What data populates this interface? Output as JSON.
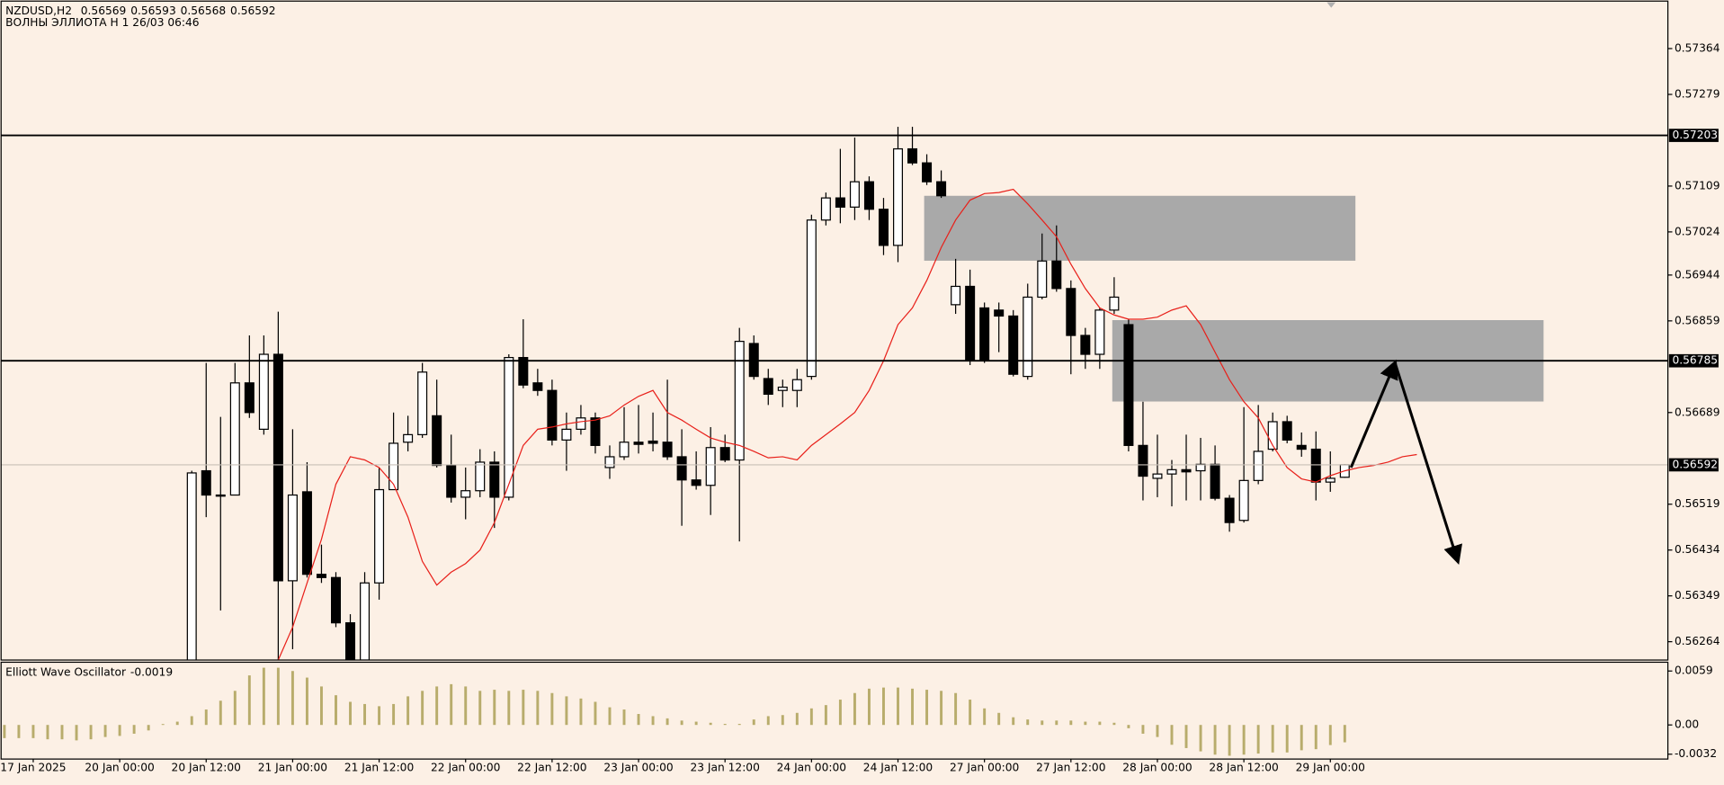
{
  "chart_data": {
    "type": "candlestick",
    "title": "NZDUSD,H2",
    "subtitle": "ВОЛНЫ ЭЛЛИОТА H 1 26/03 06:46",
    "categories": [
      null,
      null,
      "17 Jan 2025",
      null,
      null,
      null,
      null,
      null,
      "20 Jan 00:00",
      null,
      null,
      null,
      null,
      null,
      "20 Jan 12:00",
      null,
      null,
      null,
      null,
      null,
      "21 Jan 00:00",
      null,
      null,
      null,
      null,
      null,
      "21 Jan 12:00",
      null,
      null,
      null,
      null,
      null,
      "22 Jan 00:00",
      null,
      null,
      null,
      null,
      null,
      "22 Jan 12:00",
      null,
      null,
      null,
      null,
      null,
      "23 Jan 00:00",
      null,
      null,
      null,
      null,
      null,
      "23 Jan 12:00",
      null,
      null,
      null,
      null,
      null,
      "24 Jan 00:00",
      null,
      null,
      null,
      null,
      null,
      "24 Jan 12:00",
      null,
      null,
      null,
      null,
      null,
      "27 Jan 00:00",
      null,
      null,
      null,
      null,
      null,
      "27 Jan 12:00",
      null,
      null,
      null,
      null,
      null,
      "28 Jan 00:00",
      null,
      null,
      null,
      null,
      null,
      "28 Jan 12:00",
      null,
      null,
      null,
      null,
      null,
      "29 Jan 00:00",
      null,
      null,
      null,
      null,
      null,
      null
    ],
    "open": [
      null,
      null,
      null,
      null,
      null,
      null,
      null,
      null,
      null,
      null,
      null,
      null,
      null,
      0.56148,
      0.56581,
      0.56536,
      0.56536,
      0.56744,
      0.56658,
      0.56797,
      0.56377,
      0.56542,
      0.56389,
      0.56383,
      0.56299,
      0.5623,
      0.56373,
      0.56546,
      0.56634,
      0.56648,
      0.56683,
      0.56591,
      0.56532,
      0.56544,
      0.56597,
      0.56532,
      0.56791,
      0.56744,
      0.5673,
      0.56638,
      0.56658,
      0.56679,
      0.56587,
      0.56607,
      0.56634,
      0.56636,
      0.56634,
      0.56607,
      0.56564,
      0.56554,
      0.56624,
      0.56601,
      0.56817,
      0.56752,
      0.5673,
      0.5673,
      0.56756,
      0.57046,
      0.57087,
      0.5707,
      0.57117,
      0.57066,
      0.56999,
      0.57178,
      0.57152,
      0.57117,
      0.56889,
      0.56923,
      0.56883,
      0.56879,
      0.56868,
      0.56756,
      0.56903,
      0.5697,
      0.56919,
      0.56832,
      0.56797,
      0.56879,
      0.56852,
      0.56628,
      0.56567,
      0.56575,
      0.56583,
      0.56581,
      0.56593,
      0.5653,
      0.56489,
      0.56563,
      0.56621,
      0.56672,
      0.56628,
      0.56621,
      0.5656,
      0.56569,
      null,
      null,
      null,
      null,
      null
    ],
    "high": [
      null,
      null,
      null,
      null,
      null,
      null,
      null,
      null,
      null,
      null,
      null,
      null,
      null,
      0.56581,
      0.56781,
      0.56681,
      0.56781,
      0.56832,
      0.56832,
      0.56876,
      0.56658,
      0.56597,
      0.56444,
      0.56393,
      0.56315,
      0.56393,
      0.56587,
      0.56689,
      0.56683,
      0.56781,
      0.5675,
      0.56648,
      0.56587,
      0.56621,
      0.56617,
      0.56797,
      0.56862,
      0.5677,
      0.5675,
      0.56689,
      0.56703,
      0.56689,
      0.56628,
      0.56699,
      0.56703,
      0.56689,
      0.5675,
      0.56658,
      0.56617,
      0.56662,
      0.56648,
      0.56846,
      0.56832,
      0.5677,
      0.5675,
      0.5677,
      0.57056,
      0.57097,
      0.57178,
      0.57199,
      0.57127,
      0.57087,
      0.57219,
      0.57219,
      0.57168,
      0.57138,
      0.56974,
      0.56954,
      0.56893,
      0.56893,
      0.56879,
      0.56928,
      0.57021,
      0.57036,
      0.56934,
      0.56846,
      0.56883,
      0.5694,
      0.56862,
      0.56709,
      0.56648,
      0.56601,
      0.56648,
      0.56642,
      0.56628,
      0.56536,
      0.56699,
      0.56703,
      0.56689,
      0.56683,
      0.56652,
      0.56654,
      0.56617,
      0.56593,
      null,
      null,
      null,
      null,
      null
    ],
    "low": [
      null,
      null,
      null,
      null,
      null,
      null,
      null,
      null,
      null,
      null,
      null,
      null,
      null,
      0.56128,
      0.56495,
      0.56322,
      0.56536,
      0.56679,
      0.56648,
      0.56209,
      0.5625,
      0.56383,
      0.56373,
      0.56291,
      0.56209,
      0.5622,
      0.56342,
      0.56546,
      0.56617,
      0.56642,
      0.56587,
      0.56522,
      0.56491,
      0.56532,
      0.56475,
      0.56526,
      0.56734,
      0.5672,
      0.56628,
      0.56581,
      0.56648,
      0.56613,
      0.56566,
      0.56601,
      0.56613,
      0.56617,
      0.56601,
      0.56479,
      0.56546,
      0.56499,
      0.56597,
      0.5645,
      0.5675,
      0.56703,
      0.56699,
      0.56699,
      0.5675,
      0.57036,
      0.5704,
      0.57046,
      0.57046,
      0.56981,
      0.56968,
      0.57148,
      0.57111,
      0.57087,
      0.56872,
      0.56777,
      0.56781,
      0.56801,
      0.56756,
      0.5675,
      0.56899,
      0.56913,
      0.5676,
      0.5677,
      0.5677,
      0.56872,
      0.56617,
      0.56526,
      0.56532,
      0.56515,
      0.56526,
      0.56526,
      0.56526,
      0.56468,
      0.56485,
      0.56556,
      0.56617,
      0.56632,
      0.56607,
      0.56526,
      0.56542,
      0.56568,
      null,
      null,
      null,
      null,
      null
    ],
    "close": [
      null,
      null,
      null,
      null,
      null,
      null,
      null,
      null,
      null,
      null,
      null,
      null,
      null,
      0.56577,
      0.56536,
      0.56534,
      0.56744,
      0.56689,
      0.56797,
      0.56377,
      0.56536,
      0.56389,
      0.56383,
      0.56299,
      0.5623,
      0.56373,
      0.56546,
      0.56632,
      0.56648,
      0.56764,
      0.56591,
      0.56532,
      0.56544,
      0.56597,
      0.56532,
      0.56791,
      0.5674,
      0.5673,
      0.56638,
      0.56658,
      0.56679,
      0.56628,
      0.56607,
      0.56634,
      0.5663,
      0.56632,
      0.56607,
      0.56564,
      0.56554,
      0.56624,
      0.56601,
      0.56821,
      0.56756,
      0.56723,
      0.56736,
      0.5675,
      0.57046,
      0.57087,
      0.5707,
      0.57117,
      0.57066,
      0.56999,
      0.57178,
      0.57152,
      0.57117,
      0.57091,
      0.56923,
      0.56785,
      0.56785,
      0.56868,
      0.5676,
      0.56903,
      0.5697,
      0.56919,
      0.56832,
      0.56797,
      0.56879,
      0.56903,
      0.56628,
      0.56571,
      0.56575,
      0.56583,
      0.56579,
      0.56593,
      0.5653,
      0.56485,
      0.56563,
      0.56617,
      0.56672,
      0.56638,
      0.56621,
      0.5656,
      0.56567,
      0.56592,
      null,
      null,
      null,
      null,
      null
    ],
    "ma": {
      "color": "#e8201a",
      "values": [
        null,
        null,
        null,
        null,
        null,
        null,
        null,
        null,
        null,
        null,
        null,
        null,
        null,
        null,
        null,
        null,
        null,
        null,
        null,
        0.5623,
        0.56291,
        0.56373,
        0.56454,
        0.56556,
        0.56607,
        0.56601,
        0.56587,
        0.56556,
        0.56495,
        0.56413,
        0.56369,
        0.56393,
        0.56409,
        0.56434,
        0.56485,
        0.56556,
        0.56628,
        0.56658,
        0.56662,
        0.56668,
        0.56672,
        0.56675,
        0.56683,
        0.56703,
        0.56719,
        0.5673,
        0.56689,
        0.56675,
        0.56658,
        0.56642,
        0.56634,
        0.56628,
        0.56617,
        0.56605,
        0.56607,
        0.56601,
        0.56628,
        0.56648,
        0.56668,
        0.56689,
        0.5673,
        0.56785,
        0.56852,
        0.56883,
        0.56934,
        0.56995,
        0.57046,
        0.57083,
        0.57095,
        0.57097,
        0.57103,
        0.57076,
        0.57046,
        0.57015,
        0.56964,
        0.56919,
        0.56883,
        0.5687,
        0.56862,
        0.56862,
        0.56866,
        0.56879,
        0.56887,
        0.56852,
        0.56801,
        0.5675,
        0.56709,
        0.56679,
        0.56628,
        0.56587,
        0.56566,
        0.5656,
        0.56572,
        0.56581,
        0.56587,
        0.56591,
        0.56597,
        0.56607,
        0.56611
      ]
    },
    "ylim": [
      0.5623,
      0.5745
    ],
    "yticks": [
      0.57364,
      0.57279,
      0.57109,
      0.57024,
      0.56944,
      0.56859,
      0.56689,
      0.56519,
      0.56434,
      0.56349,
      0.56264
    ],
    "hlines": [
      0.57203,
      0.56785
    ],
    "grid": false,
    "indicator": {
      "type": "bar",
      "name": "Elliott Wave Oscillator",
      "color": "#b8ac6c",
      "values": [
        -0.00144,
        -0.00144,
        -0.00144,
        -0.00157,
        -0.00157,
        -0.00169,
        -0.00157,
        -0.00132,
        -0.0012,
        -0.00096,
        -0.0006,
        0.0001,
        0.00036,
        0.00096,
        0.00169,
        0.00265,
        0.00373,
        0.00542,
        0.00626,
        0.00626,
        0.0059,
        0.00518,
        0.00421,
        0.00325,
        0.00253,
        0.00229,
        0.00205,
        0.00229,
        0.00313,
        0.00373,
        0.00421,
        0.00446,
        0.00421,
        0.00373,
        0.00385,
        0.00373,
        0.00385,
        0.00373,
        0.00349,
        0.00313,
        0.00289,
        0.00253,
        0.00193,
        0.00169,
        0.0012,
        0.00096,
        0.00072,
        0.00048,
        0.00036,
        0.00024,
        0.00012,
        0.00012,
        0.0006,
        0.00096,
        0.00108,
        0.00132,
        0.00181,
        0.00217,
        0.00277,
        0.00349,
        0.00397,
        0.00409,
        0.00409,
        0.00397,
        0.00385,
        0.00373,
        0.00349,
        0.00277,
        0.00181,
        0.00132,
        0.00084,
        0.0006,
        0.00048,
        0.00048,
        0.00048,
        0.00036,
        0.00036,
        0.00024,
        -0.00036,
        -0.00096,
        -0.00132,
        -0.00217,
        -0.00253,
        -0.00289,
        -0.00325,
        -0.00337,
        -0.00325,
        -0.00313,
        -0.00301,
        -0.00301,
        -0.00277,
        -0.00265,
        -0.0022,
        -0.0019,
        null,
        null,
        null,
        null,
        null
      ],
      "ylim": [
        -0.00373,
        0.00674
      ],
      "yticks": [
        0.0059,
        {
          "value": 0,
          "label": "0.00"
        },
        -0.0032
      ]
    }
  }
}
